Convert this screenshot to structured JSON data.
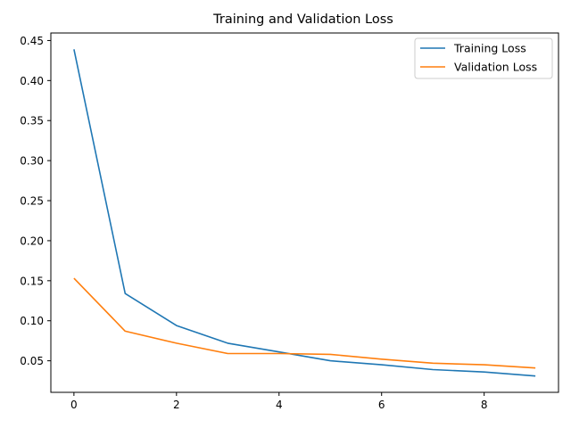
{
  "chart_data": {
    "type": "line",
    "title": "Training and Validation Loss",
    "xlabel": "",
    "ylabel": "",
    "x": [
      0,
      1,
      2,
      3,
      4,
      5,
      6,
      7,
      8,
      9
    ],
    "series": [
      {
        "name": "Training Loss",
        "color": "#1f77b4",
        "values": [
          0.439,
          0.134,
          0.094,
          0.072,
          0.061,
          0.05,
          0.045,
          0.039,
          0.036,
          0.031
        ]
      },
      {
        "name": "Validation Loss",
        "color": "#ff7f0e",
        "values": [
          0.153,
          0.087,
          0.072,
          0.059,
          0.059,
          0.058,
          0.052,
          0.047,
          0.045,
          0.041
        ]
      }
    ],
    "xlim": [
      -0.45,
      9.45
    ],
    "ylim": [
      0.0106,
      0.4594
    ],
    "xticks": [
      0,
      2,
      4,
      6,
      8
    ],
    "xtick_labels": [
      "0",
      "2",
      "4",
      "6",
      "8"
    ],
    "yticks": [
      0.05,
      0.1,
      0.15,
      0.2,
      0.25,
      0.3,
      0.35,
      0.4,
      0.45
    ],
    "ytick_labels": [
      "0.05",
      "0.10",
      "0.15",
      "0.20",
      "0.25",
      "0.30",
      "0.35",
      "0.40",
      "0.45"
    ],
    "grid": false,
    "legend_position": "top-right"
  }
}
